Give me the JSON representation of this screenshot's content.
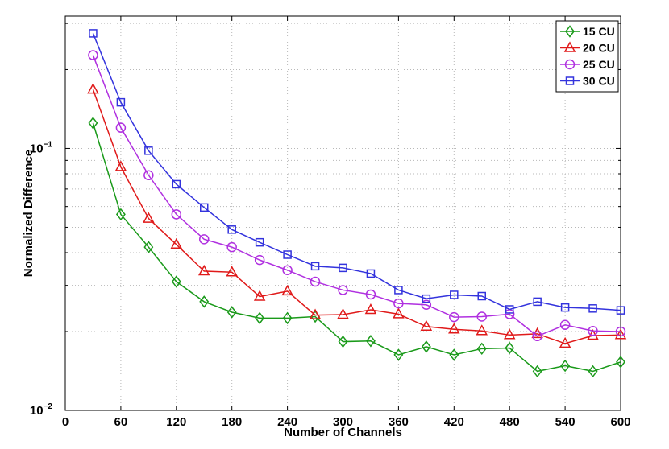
{
  "chart_data": {
    "type": "line",
    "xlabel": "Number of Channels",
    "ylabel": "Normalized Difference",
    "yscale": "log",
    "xlim": [
      0,
      600
    ],
    "ylim": [
      0.01,
      0.32
    ],
    "grid": true,
    "legend_position": "top-right",
    "xticks": [
      0,
      60,
      120,
      180,
      240,
      300,
      360,
      420,
      480,
      540,
      600
    ],
    "yticks": [
      {
        "value": 0.1,
        "base": "10",
        "exp": "−1"
      },
      {
        "value": 0.01,
        "base": "10",
        "exp": "−2"
      }
    ],
    "x": [
      30,
      60,
      90,
      120,
      150,
      180,
      210,
      240,
      270,
      300,
      330,
      360,
      390,
      420,
      450,
      480,
      510,
      540,
      570,
      600
    ],
    "series": [
      {
        "name": "15 CU",
        "color": "#1a9a1a",
        "marker": "diamond",
        "values": [
          0.125,
          0.056,
          0.042,
          0.031,
          0.026,
          0.0237,
          0.0225,
          0.0225,
          0.0228,
          0.0183,
          0.0184,
          0.0163,
          0.0175,
          0.0163,
          0.0172,
          0.0173,
          0.0141,
          0.0148,
          0.0141,
          0.0153
        ]
      },
      {
        "name": "20 CU",
        "color": "#e01a1a",
        "marker": "triangle",
        "values": [
          0.168,
          0.085,
          0.054,
          0.043,
          0.034,
          0.0337,
          0.0272,
          0.0285,
          0.0231,
          0.0232,
          0.0242,
          0.0233,
          0.0209,
          0.0204,
          0.0201,
          0.0194,
          0.0196,
          0.018,
          0.0193,
          0.0194
        ]
      },
      {
        "name": "25 CU",
        "color": "#b030e0",
        "marker": "circle",
        "values": [
          0.227,
          0.12,
          0.079,
          0.056,
          0.045,
          0.042,
          0.0375,
          0.0343,
          0.031,
          0.0288,
          0.0277,
          0.0256,
          0.0253,
          0.0227,
          0.0228,
          0.0233,
          0.0192,
          0.0212,
          0.0201,
          0.02
        ]
      },
      {
        "name": "30 CU",
        "color": "#3333dd",
        "marker": "square",
        "values": [
          0.275,
          0.15,
          0.098,
          0.073,
          0.0595,
          0.049,
          0.0438,
          0.0393,
          0.0355,
          0.035,
          0.0333,
          0.0288,
          0.0267,
          0.0276,
          0.0273,
          0.0243,
          0.026,
          0.0247,
          0.0245,
          0.0241
        ]
      }
    ]
  }
}
